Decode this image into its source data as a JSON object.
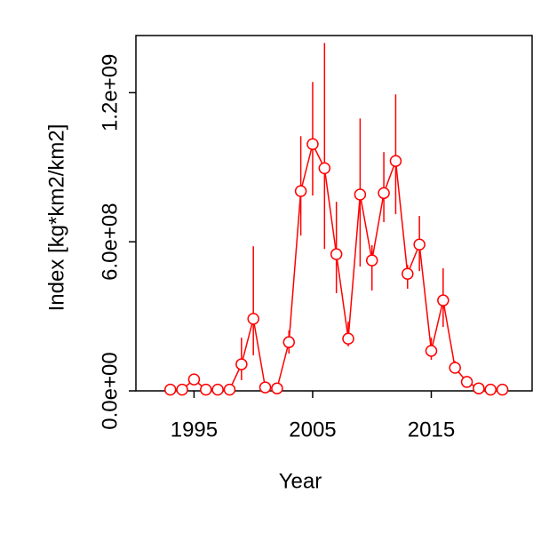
{
  "chart_data": {
    "type": "line",
    "x_label": "Year",
    "y_label": "Index [kg*km2/km2]",
    "x": [
      1993,
      1994,
      1995,
      1996,
      1997,
      1998,
      1999,
      2000,
      2001,
      2002,
      2003,
      2004,
      2005,
      2006,
      2007,
      2008,
      2009,
      2010,
      2011,
      2012,
      2013,
      2014,
      2015,
      2016,
      2017,
      2018,
      2019,
      2020,
      2021
    ],
    "series": [
      {
        "color": "#ff0000",
        "values": [
          5000000,
          5000000,
          46000000,
          5000000,
          5000000,
          5000000,
          107000000,
          290000000,
          14000000,
          10000000,
          196000000,
          804000000,
          993000000,
          896000000,
          550000000,
          210000000,
          790000000,
          525000000,
          796000000,
          925000000,
          471000000,
          589000000,
          161000000,
          364000000,
          93000000,
          36000000,
          10000000,
          5000000,
          5000000
        ]
      }
    ],
    "lower": [
      2000000,
      2000000,
      30000000,
      2000000,
      2000000,
      2000000,
      43000000,
      143000000,
      4000000,
      3000000,
      150000000,
      625000000,
      786000000,
      571000000,
      393000000,
      179000000,
      500000000,
      404000000,
      679000000,
      711000000,
      411000000,
      482000000,
      125000000,
      257000000,
      70000000,
      25000000,
      5000000,
      2000000,
      2000000
    ],
    "upper": [
      9000000,
      9000000,
      65000000,
      9000000,
      9000000,
      9000000,
      214000000,
      582000000,
      30000000,
      22000000,
      243000000,
      1025000000,
      1243000000,
      1400000000,
      761000000,
      279000000,
      1096000000,
      586000000,
      961000000,
      1193000000,
      507000000,
      704000000,
      214000000,
      493000000,
      120000000,
      50000000,
      18000000,
      9000000,
      9000000
    ],
    "xlim": [
      1990.1,
      2023.5
    ],
    "ylim": [
      0,
      1430000000
    ],
    "xticks": [
      1995,
      2005,
      2015
    ],
    "yticks": [
      {
        "value": 0,
        "label": "0.0e+00"
      },
      {
        "value": 600000000,
        "label": "6.0e+08"
      },
      {
        "value": 1200000000,
        "label": "1.2e+09"
      }
    ]
  }
}
